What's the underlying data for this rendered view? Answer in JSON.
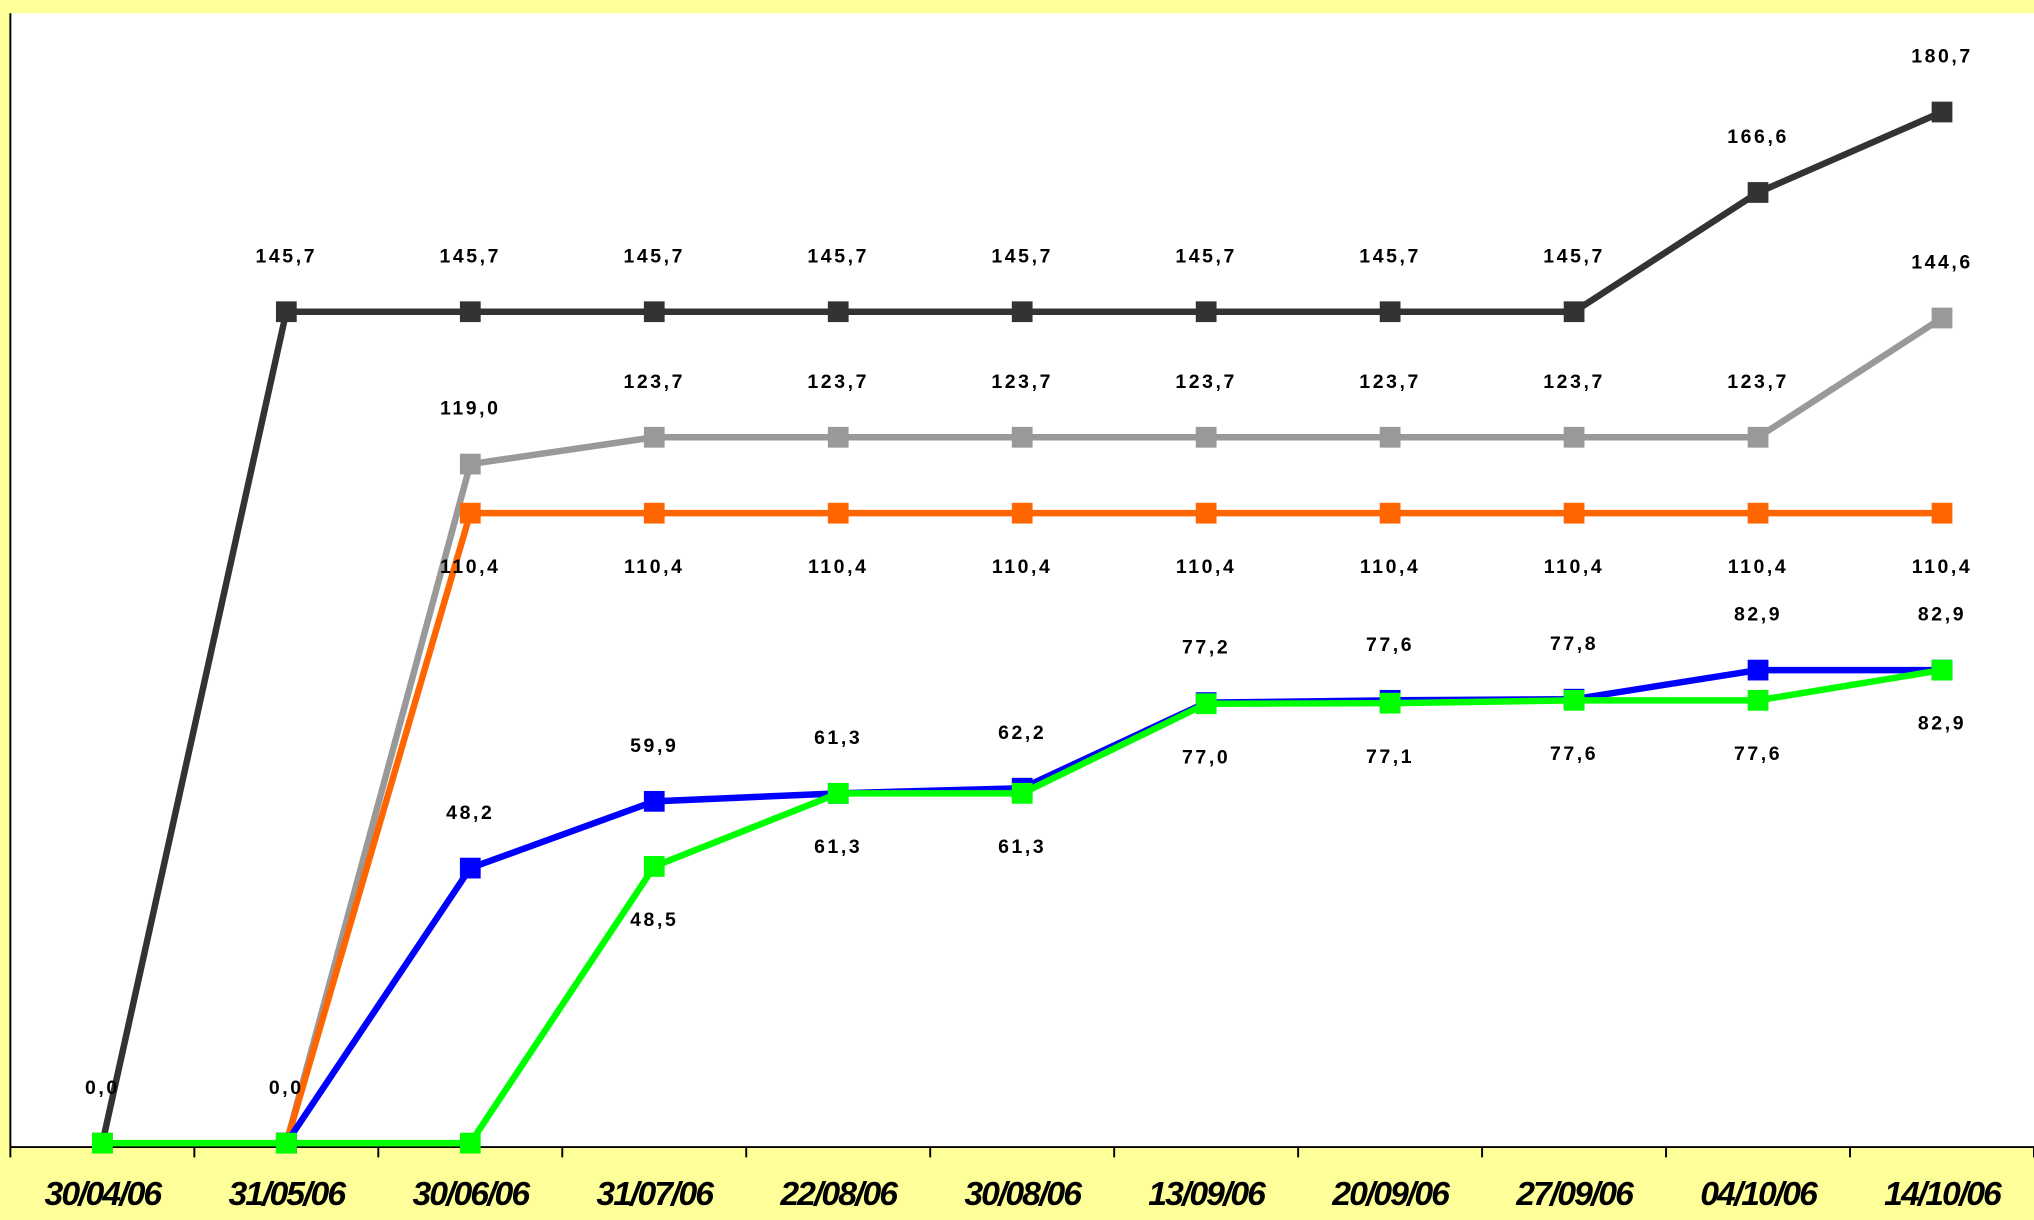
{
  "chart_data": {
    "type": "line",
    "categories": [
      "30/04/06",
      "31/05/06",
      "30/06/06",
      "31/07/06",
      "22/08/06",
      "30/08/06",
      "13/09/06",
      "20/09/06",
      "27/09/06",
      "04/10/06",
      "14/10/06"
    ],
    "ylim": [
      0,
      198
    ],
    "series": [
      {
        "color": "#333333",
        "label_side": "above",
        "values": [
          0.0,
          145.7,
          145.7,
          145.7,
          145.7,
          145.7,
          145.7,
          145.7,
          145.7,
          166.6,
          180.7
        ],
        "value_labels": [
          "0,0",
          "145,7",
          "145,7",
          "145,7",
          "145,7",
          "145,7",
          "145,7",
          "145,7",
          "145,7",
          "166,6",
          "180,7"
        ]
      },
      {
        "color": "#999999",
        "label_side": "above",
        "values": [
          null,
          0.0,
          119.0,
          123.7,
          123.7,
          123.7,
          123.7,
          123.7,
          123.7,
          123.7,
          144.6
        ],
        "value_labels": [
          null,
          null,
          "119,0",
          "123,7",
          "123,7",
          "123,7",
          "123,7",
          "123,7",
          "123,7",
          "123,7",
          "144,6"
        ]
      },
      {
        "color": "#ff6600",
        "label_side": "below",
        "values": [
          null,
          0.0,
          110.4,
          110.4,
          110.4,
          110.4,
          110.4,
          110.4,
          110.4,
          110.4,
          110.4
        ],
        "value_labels": [
          null,
          null,
          "110,4",
          "110,4",
          "110,4",
          "110,4",
          "110,4",
          "110,4",
          "110,4",
          "110,4",
          "110,4"
        ]
      },
      {
        "color": "#0000ff",
        "label_side": "above",
        "values": [
          null,
          0.0,
          48.2,
          59.9,
          61.3,
          62.2,
          77.2,
          77.6,
          77.8,
          82.9,
          82.9
        ],
        "value_labels": [
          null,
          "0,0",
          "48,2",
          "59,9",
          "61,3",
          "62,2",
          "77,2",
          "77,6",
          "77,8",
          "82,9",
          "82,9"
        ]
      },
      {
        "color": "#00ff00",
        "label_side": "below",
        "values": [
          0.0,
          0.0,
          0.0,
          48.5,
          61.3,
          61.3,
          77.0,
          77.1,
          77.6,
          77.6,
          82.9
        ],
        "value_labels": [
          null,
          null,
          null,
          "48,5",
          "61,3",
          "61,3",
          "77,0",
          "77,1",
          "77,6",
          "77,6",
          "82,9"
        ]
      }
    ]
  }
}
